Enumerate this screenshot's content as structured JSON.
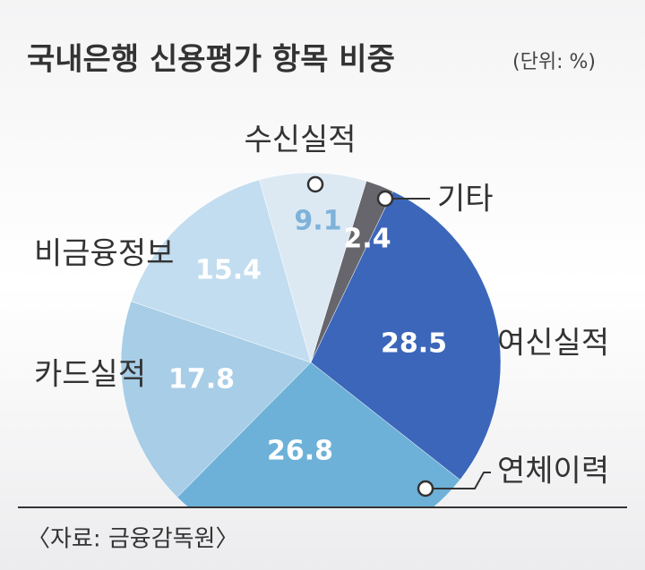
{
  "chart_data": {
    "type": "pie",
    "title": "국내은행 신용평가 항목 비중",
    "subtitle": "(단위: %)",
    "source": "〈자료: 금융감독원〉",
    "categories": [
      "기타",
      "여신실적",
      "연체이력",
      "카드실적",
      "비금융정보",
      "수신실적"
    ],
    "values": [
      2.4,
      28.5,
      26.8,
      17.8,
      15.4,
      9.1
    ],
    "colors": [
      "#66666c",
      "#3b66ba",
      "#6db1d8",
      "#a7cde7",
      "#c2ddef",
      "#dce9f3"
    ]
  }
}
